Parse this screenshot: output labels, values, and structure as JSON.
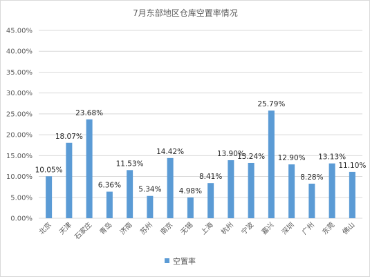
{
  "chart_data": {
    "type": "bar",
    "title": "7月东部地区仓库空置率情况",
    "categories": [
      "北京",
      "天津",
      "石家庄",
      "青岛",
      "济南",
      "苏州",
      "南京",
      "无锡",
      "上海",
      "杭州",
      "宁波",
      "嘉兴",
      "深圳",
      "广州",
      "东莞",
      "佛山"
    ],
    "series": [
      {
        "name": "空置率",
        "color": "#5b9bd5",
        "values": [
          10.05,
          18.07,
          23.68,
          6.36,
          11.53,
          5.34,
          14.42,
          4.98,
          8.41,
          13.9,
          13.24,
          25.79,
          12.9,
          8.28,
          13.13,
          11.1
        ],
        "labels": [
          "10.05%",
          "18.07%",
          "23.68%",
          "6.36%",
          "11.53%",
          "5.34%",
          "14.42%",
          "4.98%",
          "8.41%",
          "13.90%",
          "13.24%",
          "25.79%",
          "12.90%",
          "8.28%",
          "13.13%",
          "11.10%"
        ]
      }
    ],
    "y_ticks": [
      "0.00%",
      "5.00%",
      "10.00%",
      "15.00%",
      "20.00%",
      "25.00%",
      "30.00%",
      "35.00%",
      "40.00%",
      "45.00%"
    ],
    "ylim": [
      0,
      45
    ],
    "y_step": 5,
    "grid": true,
    "legend_position": "bottom"
  }
}
